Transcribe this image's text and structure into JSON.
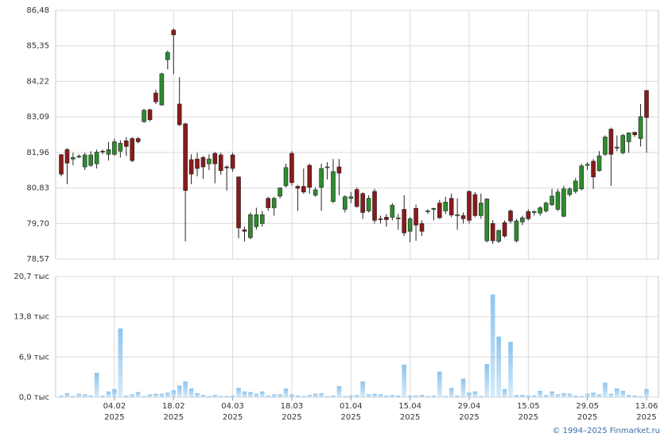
{
  "chart_data": [
    {
      "type": "candlestick",
      "up_color": "#2e8b2e",
      "down_color": "#8b1a1a",
      "open": [
        81.89,
        82.05,
        81.75,
        81.82,
        81.5,
        81.55,
        81.6,
        82.0,
        81.9,
        81.9,
        82.0,
        82.33,
        82.4,
        82.4,
        82.94,
        83.32,
        83.85,
        83.47,
        84.91,
        85.85,
        83.5,
        82.87,
        81.73,
        81.75,
        81.8,
        81.6,
        81.93,
        81.88,
        81.5,
        81.88,
        81.18,
        79.5,
        79.25,
        79.6,
        79.7,
        80.5,
        80.2,
        80.57,
        80.9,
        81.93,
        80.88,
        80.88,
        81.55,
        80.6,
        80.85,
        81.48,
        80.4,
        81.5,
        80.15,
        80.5,
        80.78,
        80.65,
        80.1,
        80.72,
        79.85,
        79.9,
        79.9,
        79.85,
        80.15,
        79.45,
        80.18,
        79.7,
        80.08,
        80.15,
        80.35,
        80.1,
        80.5,
        79.95,
        79.95,
        80.72,
        80.62,
        79.95,
        79.15,
        79.7,
        79.13,
        79.73,
        80.1,
        79.15,
        79.75,
        80.08,
        80.05,
        80.03,
        80.1,
        80.3,
        80.15,
        79.93,
        80.62,
        80.72,
        80.8,
        81.55,
        81.68,
        81.38,
        81.9,
        82.7,
        82.1,
        81.95,
        82.3,
        82.6,
        82.4,
        83.93
      ],
      "high": [
        81.9,
        82.1,
        81.95,
        81.9,
        81.95,
        82.0,
        82.05,
        82.05,
        82.3,
        82.4,
        82.35,
        82.45,
        82.45,
        82.45,
        83.35,
        83.35,
        83.95,
        84.5,
        85.2,
        85.9,
        84.35,
        82.9,
        81.9,
        81.95,
        81.85,
        81.9,
        81.98,
        81.95,
        81.55,
        81.95,
        81.2,
        79.6,
        80.05,
        80.2,
        80.1,
        80.55,
        80.55,
        80.85,
        81.6,
        82.0,
        80.93,
        81.45,
        81.6,
        80.85,
        81.6,
        81.65,
        81.75,
        81.75,
        80.6,
        80.7,
        80.85,
        80.7,
        80.6,
        80.8,
        79.95,
        80.0,
        80.35,
        80.0,
        80.6,
        79.9,
        80.3,
        79.8,
        80.15,
        80.2,
        80.45,
        80.55,
        80.65,
        80.5,
        80.05,
        80.75,
        80.7,
        80.65,
        80.5,
        79.8,
        79.5,
        79.8,
        80.15,
        79.85,
        79.95,
        80.15,
        80.12,
        80.25,
        80.4,
        80.8,
        80.8,
        80.9,
        80.85,
        81.15,
        81.6,
        81.65,
        81.75,
        82.0,
        82.5,
        82.75,
        82.5,
        82.55,
        82.6,
        82.62,
        83.5,
        83.95
      ],
      "low": [
        81.2,
        80.95,
        81.55,
        81.78,
        81.4,
        81.5,
        81.45,
        81.9,
        81.7,
        81.85,
        81.8,
        81.85,
        81.65,
        82.25,
        82.9,
        82.95,
        83.5,
        83.45,
        84.6,
        84.45,
        82.8,
        79.13,
        80.95,
        81.2,
        81.12,
        81.4,
        80.98,
        81.25,
        80.75,
        81.35,
        79.23,
        79.13,
        79.2,
        79.5,
        79.6,
        80.1,
        79.95,
        80.5,
        80.85,
        80.9,
        80.1,
        80.65,
        80.65,
        80.55,
        80.1,
        81.1,
        80.35,
        80.6,
        80.05,
        80.35,
        80.2,
        79.85,
        80.05,
        79.7,
        79.7,
        79.6,
        79.8,
        79.5,
        79.3,
        79.1,
        79.15,
        79.3,
        80.0,
        79.8,
        79.85,
        80.0,
        79.9,
        79.5,
        79.7,
        79.7,
        79.9,
        79.85,
        79.1,
        79.05,
        79.08,
        79.25,
        79.7,
        79.1,
        79.65,
        79.8,
        79.95,
        79.95,
        80.05,
        80.25,
        80.1,
        79.9,
        80.55,
        80.65,
        80.75,
        81.4,
        80.8,
        81.35,
        81.85,
        80.9,
        82.0,
        81.9,
        81.95,
        82.45,
        82.15,
        81.95
      ],
      "close": [
        81.27,
        81.62,
        81.8,
        81.84,
        81.88,
        81.88,
        81.97,
        81.98,
        82.05,
        82.3,
        82.25,
        82.15,
        81.7,
        82.3,
        83.3,
        83.0,
        83.57,
        84.46,
        85.14,
        85.7,
        82.84,
        80.75,
        81.27,
        81.45,
        81.5,
        81.75,
        81.6,
        81.38,
        81.47,
        81.45,
        79.56,
        79.45,
        79.98,
        79.98,
        79.98,
        80.2,
        80.5,
        80.83,
        81.48,
        81.0,
        80.82,
        80.7,
        80.85,
        80.77,
        81.45,
        81.5,
        81.35,
        81.3,
        80.55,
        80.55,
        80.24,
        80.05,
        80.5,
        79.8,
        79.83,
        79.82,
        80.28,
        79.88,
        79.4,
        79.85,
        79.65,
        79.45,
        80.1,
        80.18,
        79.88,
        80.38,
        79.97,
        79.98,
        79.85,
        79.8,
        79.95,
        80.35,
        80.48,
        79.15,
        79.48,
        79.3,
        79.78,
        79.78,
        79.88,
        79.85,
        80.08,
        80.2,
        80.35,
        80.57,
        80.7,
        80.8,
        80.8,
        81.05,
        81.53,
        81.58,
        81.18,
        81.85,
        82.45,
        81.9,
        82.13,
        82.5,
        82.58,
        82.52,
        83.1,
        83.07
      ],
      "ylim": [
        78.57,
        86.48
      ],
      "yticks": [
        {
          "value": 78.57,
          "label": "78,57"
        },
        {
          "value": 79.7,
          "label": "79,70"
        },
        {
          "value": 80.83,
          "label": "80,83"
        },
        {
          "value": 81.96,
          "label": "81,96"
        },
        {
          "value": 83.09,
          "label": "83,09"
        },
        {
          "value": 84.22,
          "label": "84,22"
        },
        {
          "value": 85.35,
          "label": "85,35"
        },
        {
          "value": 86.48,
          "label": "86,48"
        }
      ],
      "grid": true
    },
    {
      "type": "bar",
      "color": "#8cc4ee",
      "categories": [
        null,
        null,
        null,
        null,
        null,
        null,
        null,
        null,
        null,
        "04.02",
        null,
        null,
        null,
        null,
        null,
        null,
        null,
        null,
        null,
        "18.02",
        null,
        null,
        null,
        null,
        null,
        null,
        null,
        null,
        null,
        "04.03",
        null,
        null,
        null,
        null,
        null,
        null,
        null,
        null,
        null,
        "18.03",
        null,
        null,
        null,
        null,
        null,
        null,
        null,
        null,
        null,
        "01.04",
        null,
        null,
        null,
        null,
        null,
        null,
        null,
        null,
        null,
        "15.04",
        null,
        null,
        null,
        null,
        null,
        null,
        null,
        null,
        null,
        "29.04",
        null,
        null,
        null,
        null,
        null,
        null,
        null,
        null,
        null,
        "15.05",
        null,
        null,
        null,
        null,
        null,
        null,
        null,
        null,
        null,
        "29.05",
        null,
        null,
        null,
        null,
        null,
        null,
        null,
        null,
        null,
        "13.06"
      ],
      "category_years": [
        null,
        null,
        null,
        null,
        null,
        null,
        null,
        null,
        null,
        "2025",
        null,
        null,
        null,
        null,
        null,
        null,
        null,
        null,
        null,
        "2025",
        null,
        null,
        null,
        null,
        null,
        null,
        null,
        null,
        null,
        "2025",
        null,
        null,
        null,
        null,
        null,
        null,
        null,
        null,
        null,
        "2025",
        null,
        null,
        null,
        null,
        null,
        null,
        null,
        null,
        null,
        "2025",
        null,
        null,
        null,
        null,
        null,
        null,
        null,
        null,
        null,
        "2025",
        null,
        null,
        null,
        null,
        null,
        null,
        null,
        null,
        null,
        "2025",
        null,
        null,
        null,
        null,
        null,
        null,
        null,
        null,
        null,
        "2025",
        null,
        null,
        null,
        null,
        null,
        null,
        null,
        null,
        null,
        "2025",
        null,
        null,
        null,
        null,
        null,
        null,
        null,
        null,
        null,
        "2025"
      ],
      "values": [
        0.3,
        0.7,
        0.2,
        0.6,
        0.5,
        0.3,
        4.2,
        0.3,
        1.0,
        1.4,
        11.8,
        0.3,
        0.5,
        0.9,
        0.2,
        0.5,
        0.6,
        0.6,
        0.8,
        1.2,
        2.0,
        2.7,
        1.5,
        0.7,
        0.4,
        0.2,
        0.4,
        0.2,
        0.2,
        0.3,
        1.6,
        1.0,
        0.9,
        0.6,
        1.0,
        0.3,
        0.5,
        0.5,
        1.5,
        0.5,
        0.3,
        0.2,
        0.4,
        0.6,
        0.7,
        0.2,
        0.3,
        1.9,
        0.2,
        0.3,
        0.4,
        2.7,
        0.5,
        0.6,
        0.5,
        0.3,
        0.4,
        0.3,
        5.6,
        0.3,
        0.3,
        0.4,
        0.2,
        0.3,
        4.4,
        0.2,
        1.6,
        0.3,
        3.2,
        0.8,
        1.0,
        0.2,
        5.7,
        17.6,
        10.4,
        1.4,
        9.5,
        0.4,
        0.4,
        0.3,
        0.3,
        1.1,
        0.4,
        1.0,
        0.5,
        0.7,
        0.6,
        0.3,
        0.2,
        0.6,
        0.8,
        0.5,
        2.5,
        0.6,
        1.5,
        1.1,
        0.4,
        0.3,
        0.2,
        1.4
      ],
      "ylim": [
        0,
        20.7
      ],
      "yticks": [
        {
          "value": 0,
          "label": "0,0 тыс"
        },
        {
          "value": 6.9,
          "label": "6,9 тыс"
        },
        {
          "value": 13.8,
          "label": "13,8 тыс"
        },
        {
          "value": 20.7,
          "label": "20,7 тыс"
        }
      ],
      "grid": true
    }
  ],
  "footer": "© 1994–2025 Finmarket.ru"
}
